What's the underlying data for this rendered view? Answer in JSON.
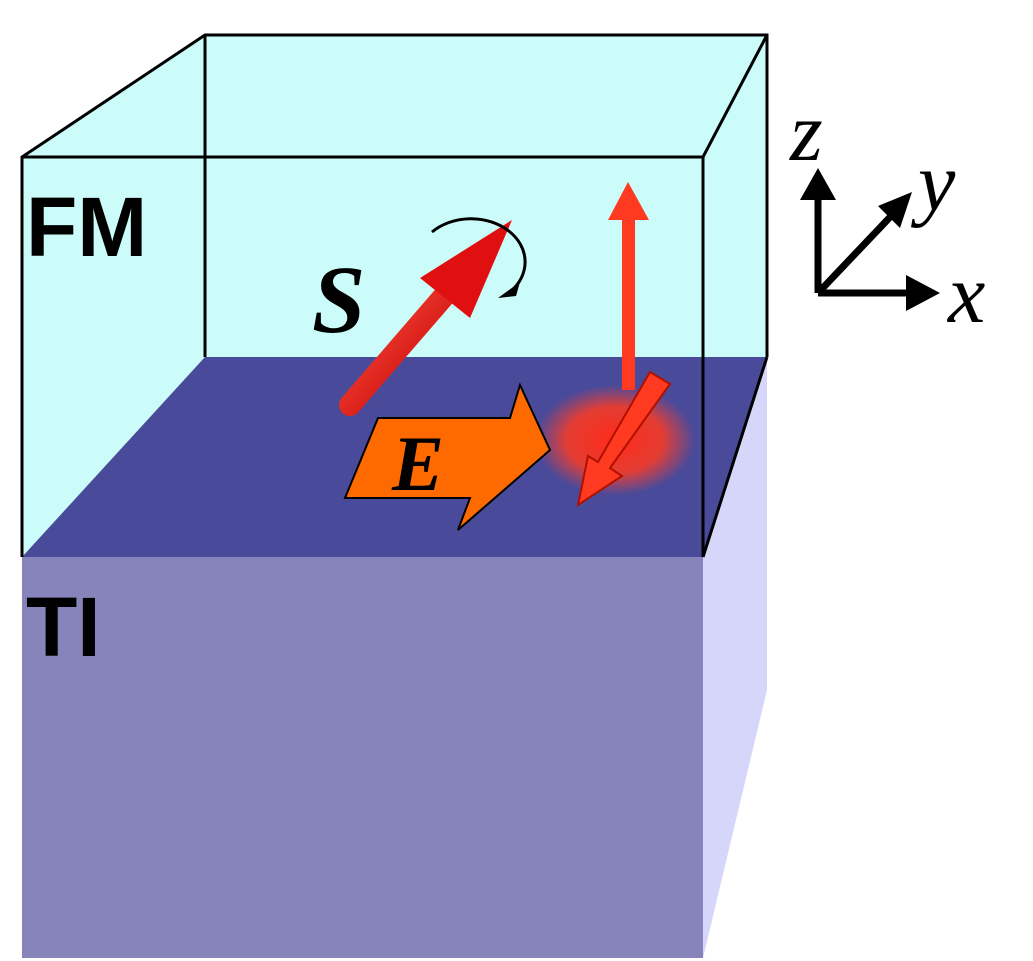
{
  "labels": {
    "fm": "FM",
    "ti": "TI",
    "spin": "S",
    "field": "E"
  },
  "axes": {
    "z": "z",
    "y": "y",
    "x": "x"
  }
}
